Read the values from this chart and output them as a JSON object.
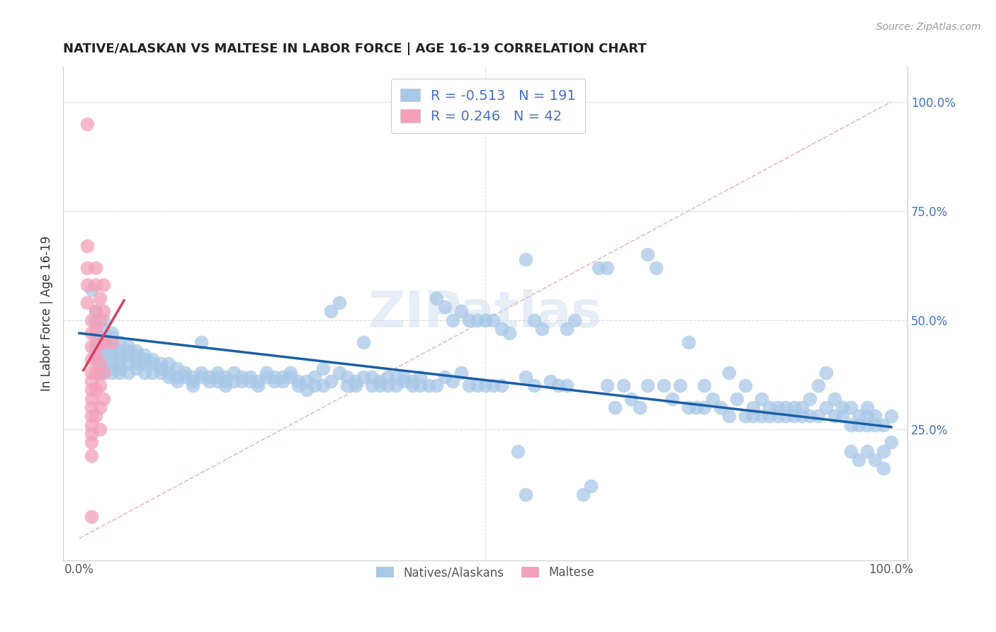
{
  "title": "NATIVE/ALASKAN VS MALTESE IN LABOR FORCE | AGE 16-19 CORRELATION CHART",
  "source": "Source: ZipAtlas.com",
  "ylabel": "In Labor Force | Age 16-19",
  "y_ticks_right": [
    "100.0%",
    "75.0%",
    "50.0%",
    "25.0%"
  ],
  "y_tick_vals": [
    1.0,
    0.75,
    0.5,
    0.25
  ],
  "xlim": [
    -0.02,
    1.02
  ],
  "ylim": [
    -0.05,
    1.08
  ],
  "blue_R": "-0.513",
  "blue_N": "191",
  "pink_R": "0.246",
  "pink_N": "42",
  "blue_color": "#a8c8e8",
  "pink_color": "#f4a0b8",
  "blue_line_color": "#1a5fa8",
  "pink_line_color": "#d44060",
  "diagonal_color": "#e8b0b8",
  "watermark": "ZIPatlas",
  "legend_label_blue": "Natives/Alaskans",
  "legend_label_pink": "Maltese",
  "blue_trend_x": [
    0.0,
    1.0
  ],
  "blue_trend_y": [
    0.47,
    0.255
  ],
  "pink_trend_x": [
    0.005,
    0.055
  ],
  "pink_trend_y": [
    0.385,
    0.545
  ],
  "blue_scatter": [
    [
      0.015,
      0.57
    ],
    [
      0.02,
      0.52
    ],
    [
      0.02,
      0.5
    ],
    [
      0.02,
      0.46
    ],
    [
      0.02,
      0.44
    ],
    [
      0.02,
      0.43
    ],
    [
      0.02,
      0.42
    ],
    [
      0.02,
      0.41
    ],
    [
      0.025,
      0.39
    ],
    [
      0.025,
      0.38
    ],
    [
      0.03,
      0.5
    ],
    [
      0.03,
      0.48
    ],
    [
      0.03,
      0.46
    ],
    [
      0.03,
      0.44
    ],
    [
      0.03,
      0.43
    ],
    [
      0.03,
      0.42
    ],
    [
      0.03,
      0.4
    ],
    [
      0.03,
      0.39
    ],
    [
      0.03,
      0.38
    ],
    [
      0.04,
      0.47
    ],
    [
      0.04,
      0.46
    ],
    [
      0.04,
      0.44
    ],
    [
      0.04,
      0.43
    ],
    [
      0.04,
      0.42
    ],
    [
      0.04,
      0.4
    ],
    [
      0.04,
      0.39
    ],
    [
      0.04,
      0.38
    ],
    [
      0.05,
      0.45
    ],
    [
      0.05,
      0.43
    ],
    [
      0.05,
      0.42
    ],
    [
      0.05,
      0.4
    ],
    [
      0.05,
      0.39
    ],
    [
      0.05,
      0.38
    ],
    [
      0.06,
      0.44
    ],
    [
      0.06,
      0.43
    ],
    [
      0.06,
      0.42
    ],
    [
      0.06,
      0.4
    ],
    [
      0.06,
      0.38
    ],
    [
      0.07,
      0.43
    ],
    [
      0.07,
      0.42
    ],
    [
      0.07,
      0.4
    ],
    [
      0.07,
      0.39
    ],
    [
      0.08,
      0.42
    ],
    [
      0.08,
      0.41
    ],
    [
      0.08,
      0.4
    ],
    [
      0.08,
      0.38
    ],
    [
      0.09,
      0.41
    ],
    [
      0.09,
      0.4
    ],
    [
      0.09,
      0.38
    ],
    [
      0.1,
      0.4
    ],
    [
      0.1,
      0.39
    ],
    [
      0.1,
      0.38
    ],
    [
      0.11,
      0.4
    ],
    [
      0.11,
      0.38
    ],
    [
      0.11,
      0.37
    ],
    [
      0.12,
      0.39
    ],
    [
      0.12,
      0.37
    ],
    [
      0.12,
      0.36
    ],
    [
      0.13,
      0.38
    ],
    [
      0.13,
      0.37
    ],
    [
      0.14,
      0.37
    ],
    [
      0.14,
      0.36
    ],
    [
      0.14,
      0.35
    ],
    [
      0.15,
      0.45
    ],
    [
      0.15,
      0.38
    ],
    [
      0.15,
      0.37
    ],
    [
      0.16,
      0.37
    ],
    [
      0.16,
      0.36
    ],
    [
      0.17,
      0.38
    ],
    [
      0.17,
      0.37
    ],
    [
      0.17,
      0.36
    ],
    [
      0.18,
      0.37
    ],
    [
      0.18,
      0.36
    ],
    [
      0.18,
      0.35
    ],
    [
      0.19,
      0.38
    ],
    [
      0.19,
      0.36
    ],
    [
      0.2,
      0.37
    ],
    [
      0.2,
      0.36
    ],
    [
      0.21,
      0.37
    ],
    [
      0.21,
      0.36
    ],
    [
      0.22,
      0.36
    ],
    [
      0.22,
      0.35
    ],
    [
      0.23,
      0.38
    ],
    [
      0.23,
      0.37
    ],
    [
      0.24,
      0.37
    ],
    [
      0.24,
      0.36
    ],
    [
      0.25,
      0.37
    ],
    [
      0.25,
      0.36
    ],
    [
      0.26,
      0.38
    ],
    [
      0.26,
      0.37
    ],
    [
      0.27,
      0.36
    ],
    [
      0.27,
      0.35
    ],
    [
      0.28,
      0.36
    ],
    [
      0.28,
      0.34
    ],
    [
      0.29,
      0.37
    ],
    [
      0.29,
      0.35
    ],
    [
      0.3,
      0.39
    ],
    [
      0.3,
      0.35
    ],
    [
      0.31,
      0.52
    ],
    [
      0.31,
      0.36
    ],
    [
      0.32,
      0.54
    ],
    [
      0.32,
      0.38
    ],
    [
      0.33,
      0.37
    ],
    [
      0.33,
      0.35
    ],
    [
      0.34,
      0.36
    ],
    [
      0.34,
      0.35
    ],
    [
      0.35,
      0.45
    ],
    [
      0.35,
      0.37
    ],
    [
      0.36,
      0.37
    ],
    [
      0.36,
      0.35
    ],
    [
      0.37,
      0.36
    ],
    [
      0.37,
      0.35
    ],
    [
      0.38,
      0.37
    ],
    [
      0.38,
      0.35
    ],
    [
      0.39,
      0.37
    ],
    [
      0.39,
      0.35
    ],
    [
      0.4,
      0.37
    ],
    [
      0.4,
      0.36
    ],
    [
      0.41,
      0.36
    ],
    [
      0.41,
      0.35
    ],
    [
      0.42,
      0.37
    ],
    [
      0.42,
      0.35
    ],
    [
      0.43,
      0.35
    ],
    [
      0.44,
      0.55
    ],
    [
      0.44,
      0.35
    ],
    [
      0.45,
      0.53
    ],
    [
      0.45,
      0.37
    ],
    [
      0.46,
      0.5
    ],
    [
      0.46,
      0.36
    ],
    [
      0.47,
      0.52
    ],
    [
      0.47,
      0.38
    ],
    [
      0.48,
      0.5
    ],
    [
      0.48,
      0.35
    ],
    [
      0.49,
      0.5
    ],
    [
      0.49,
      0.35
    ],
    [
      0.5,
      0.5
    ],
    [
      0.5,
      0.35
    ],
    [
      0.51,
      0.5
    ],
    [
      0.51,
      0.35
    ],
    [
      0.52,
      0.48
    ],
    [
      0.52,
      0.35
    ],
    [
      0.53,
      0.47
    ],
    [
      0.54,
      0.2
    ],
    [
      0.55,
      0.64
    ],
    [
      0.55,
      0.37
    ],
    [
      0.56,
      0.5
    ],
    [
      0.56,
      0.35
    ],
    [
      0.57,
      0.48
    ],
    [
      0.58,
      0.36
    ],
    [
      0.59,
      0.35
    ],
    [
      0.6,
      0.48
    ],
    [
      0.6,
      0.35
    ],
    [
      0.61,
      0.5
    ],
    [
      0.62,
      0.1
    ],
    [
      0.63,
      0.12
    ],
    [
      0.64,
      0.62
    ],
    [
      0.55,
      0.1
    ],
    [
      0.65,
      0.62
    ],
    [
      0.65,
      0.35
    ],
    [
      0.66,
      0.3
    ],
    [
      0.67,
      0.35
    ],
    [
      0.68,
      0.32
    ],
    [
      0.69,
      0.3
    ],
    [
      0.7,
      0.65
    ],
    [
      0.7,
      0.35
    ],
    [
      0.71,
      0.62
    ],
    [
      0.72,
      0.35
    ],
    [
      0.73,
      0.32
    ],
    [
      0.74,
      0.35
    ],
    [
      0.75,
      0.45
    ],
    [
      0.75,
      0.3
    ],
    [
      0.76,
      0.3
    ],
    [
      0.77,
      0.35
    ],
    [
      0.77,
      0.3
    ],
    [
      0.78,
      0.32
    ],
    [
      0.79,
      0.3
    ],
    [
      0.8,
      0.38
    ],
    [
      0.8,
      0.28
    ],
    [
      0.81,
      0.32
    ],
    [
      0.82,
      0.35
    ],
    [
      0.82,
      0.28
    ],
    [
      0.83,
      0.3
    ],
    [
      0.83,
      0.28
    ],
    [
      0.84,
      0.32
    ],
    [
      0.84,
      0.28
    ],
    [
      0.85,
      0.3
    ],
    [
      0.85,
      0.28
    ],
    [
      0.86,
      0.3
    ],
    [
      0.86,
      0.28
    ],
    [
      0.87,
      0.3
    ],
    [
      0.87,
      0.28
    ],
    [
      0.88,
      0.3
    ],
    [
      0.88,
      0.28
    ],
    [
      0.89,
      0.3
    ],
    [
      0.89,
      0.28
    ],
    [
      0.9,
      0.32
    ],
    [
      0.9,
      0.28
    ],
    [
      0.91,
      0.35
    ],
    [
      0.91,
      0.28
    ],
    [
      0.92,
      0.38
    ],
    [
      0.92,
      0.3
    ],
    [
      0.93,
      0.32
    ],
    [
      0.93,
      0.28
    ],
    [
      0.94,
      0.3
    ],
    [
      0.94,
      0.28
    ],
    [
      0.95,
      0.3
    ],
    [
      0.95,
      0.26
    ],
    [
      0.95,
      0.2
    ],
    [
      0.96,
      0.28
    ],
    [
      0.96,
      0.26
    ],
    [
      0.96,
      0.18
    ],
    [
      0.97,
      0.3
    ],
    [
      0.97,
      0.28
    ],
    [
      0.97,
      0.26
    ],
    [
      0.97,
      0.2
    ],
    [
      0.98,
      0.28
    ],
    [
      0.98,
      0.26
    ],
    [
      0.98,
      0.18
    ],
    [
      0.99,
      0.26
    ],
    [
      0.99,
      0.2
    ],
    [
      0.99,
      0.16
    ],
    [
      1.0,
      0.28
    ],
    [
      1.0,
      0.22
    ]
  ],
  "pink_scatter": [
    [
      0.01,
      0.95
    ],
    [
      0.01,
      0.67
    ],
    [
      0.01,
      0.62
    ],
    [
      0.01,
      0.58
    ],
    [
      0.01,
      0.54
    ],
    [
      0.015,
      0.5
    ],
    [
      0.015,
      0.47
    ],
    [
      0.015,
      0.44
    ],
    [
      0.015,
      0.41
    ],
    [
      0.015,
      0.38
    ],
    [
      0.015,
      0.36
    ],
    [
      0.015,
      0.34
    ],
    [
      0.015,
      0.32
    ],
    [
      0.015,
      0.3
    ],
    [
      0.015,
      0.28
    ],
    [
      0.015,
      0.26
    ],
    [
      0.015,
      0.24
    ],
    [
      0.015,
      0.22
    ],
    [
      0.015,
      0.19
    ],
    [
      0.015,
      0.05
    ],
    [
      0.02,
      0.62
    ],
    [
      0.02,
      0.58
    ],
    [
      0.02,
      0.52
    ],
    [
      0.02,
      0.48
    ],
    [
      0.02,
      0.44
    ],
    [
      0.02,
      0.42
    ],
    [
      0.02,
      0.38
    ],
    [
      0.02,
      0.34
    ],
    [
      0.02,
      0.28
    ],
    [
      0.025,
      0.55
    ],
    [
      0.025,
      0.5
    ],
    [
      0.025,
      0.45
    ],
    [
      0.025,
      0.4
    ],
    [
      0.025,
      0.35
    ],
    [
      0.025,
      0.3
    ],
    [
      0.025,
      0.25
    ],
    [
      0.03,
      0.58
    ],
    [
      0.03,
      0.52
    ],
    [
      0.03,
      0.45
    ],
    [
      0.03,
      0.38
    ],
    [
      0.03,
      0.32
    ],
    [
      0.04,
      0.45
    ]
  ]
}
